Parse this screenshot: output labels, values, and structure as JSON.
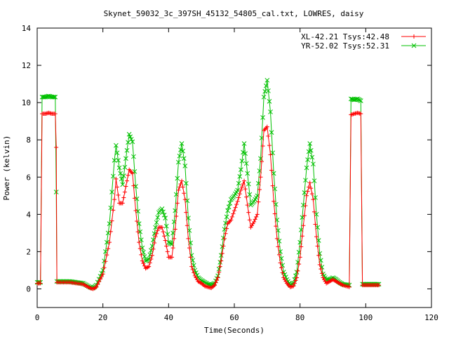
{
  "chart_data": {
    "type": "line",
    "title": "Skynet_59032_3c_397SH_45132_54805_cal.txt, LOWRES, daisy",
    "xlabel": "Time(Seconds)",
    "ylabel": "Power (kelvin)",
    "xlim": [
      0,
      120
    ],
    "ylim": [
      -1,
      14
    ],
    "xticks": [
      0,
      20,
      40,
      60,
      80,
      100,
      120
    ],
    "yticks": [
      0,
      2,
      4,
      6,
      8,
      10,
      12,
      14
    ],
    "grid": false,
    "legend_position": "top-right",
    "series": [
      {
        "name": "XL-42.21 Tsys:42.48",
        "color": "#ff0000",
        "marker": "plus",
        "points": [
          [
            0,
            0.3
          ],
          [
            1,
            0.3
          ],
          [
            1.5,
            9.4
          ],
          [
            2.5,
            9.4
          ],
          [
            3.5,
            9.45
          ],
          [
            4.5,
            9.4
          ],
          [
            5.5,
            9.4
          ],
          [
            5.8,
            7.6
          ],
          [
            6,
            0.35
          ],
          [
            8,
            0.35
          ],
          [
            10,
            0.35
          ],
          [
            12,
            0.3
          ],
          [
            14,
            0.25
          ],
          [
            16,
            0.05
          ],
          [
            17,
            0.0
          ],
          [
            18,
            0.1
          ],
          [
            20,
            0.8
          ],
          [
            22,
            2.5
          ],
          [
            23.5,
            4.8
          ],
          [
            24,
            5.9
          ],
          [
            25,
            4.6
          ],
          [
            26,
            4.6
          ],
          [
            27,
            5.5
          ],
          [
            28,
            6.4
          ],
          [
            29,
            6.2
          ],
          [
            30,
            4.2
          ],
          [
            31,
            2.5
          ],
          [
            32,
            1.5
          ],
          [
            33,
            1.1
          ],
          [
            34,
            1.2
          ],
          [
            35,
            1.8
          ],
          [
            36,
            2.8
          ],
          [
            37,
            3.3
          ],
          [
            38,
            3.3
          ],
          [
            39,
            2.6
          ],
          [
            40,
            1.7
          ],
          [
            41,
            1.7
          ],
          [
            42,
            3.2
          ],
          [
            43,
            5.3
          ],
          [
            44,
            5.8
          ],
          [
            45,
            4.8
          ],
          [
            46,
            2.7
          ],
          [
            47,
            1.2
          ],
          [
            48,
            0.7
          ],
          [
            49,
            0.4
          ],
          [
            50,
            0.3
          ],
          [
            51,
            0.15
          ],
          [
            52,
            0.1
          ],
          [
            53,
            0.05
          ],
          [
            54,
            0.2
          ],
          [
            55,
            0.6
          ],
          [
            56,
            1.5
          ],
          [
            57,
            2.7
          ],
          [
            58,
            3.5
          ],
          [
            59,
            3.7
          ],
          [
            60,
            4.2
          ],
          [
            61,
            4.7
          ],
          [
            62,
            5.3
          ],
          [
            63,
            5.8
          ],
          [
            64,
            4.5
          ],
          [
            65,
            3.3
          ],
          [
            66,
            3.6
          ],
          [
            67,
            4.0
          ],
          [
            68,
            6.0
          ],
          [
            69,
            8.5
          ],
          [
            70,
            8.7
          ],
          [
            71,
            7.2
          ],
          [
            72,
            4.7
          ],
          [
            73,
            2.7
          ],
          [
            74,
            1.4
          ],
          [
            75,
            0.6
          ],
          [
            76,
            0.3
          ],
          [
            77,
            0.1
          ],
          [
            78,
            0.15
          ],
          [
            79,
            0.6
          ],
          [
            80,
            1.7
          ],
          [
            81,
            3.4
          ],
          [
            82,
            5.0
          ],
          [
            83,
            5.7
          ],
          [
            84,
            4.8
          ],
          [
            85,
            2.8
          ],
          [
            86,
            1.3
          ],
          [
            87,
            0.6
          ],
          [
            88,
            0.3
          ],
          [
            89,
            0.4
          ],
          [
            90,
            0.5
          ],
          [
            91,
            0.4
          ],
          [
            92,
            0.3
          ],
          [
            93,
            0.2
          ],
          [
            95,
            0.1
          ],
          [
            95.5,
            9.35
          ],
          [
            96.5,
            9.4
          ],
          [
            97.5,
            9.45
          ],
          [
            98.5,
            9.4
          ],
          [
            99,
            0.2
          ],
          [
            100,
            0.2
          ],
          [
            101,
            0.2
          ],
          [
            102,
            0.2
          ],
          [
            103,
            0.2
          ],
          [
            104,
            0.2
          ]
        ]
      },
      {
        "name": "YR-52.02 Tsys:52.31",
        "color": "#00c000",
        "marker": "cross",
        "points": [
          [
            0,
            0.35
          ],
          [
            1,
            0.35
          ],
          [
            1.5,
            10.3
          ],
          [
            2.5,
            10.3
          ],
          [
            3.5,
            10.35
          ],
          [
            4.5,
            10.3
          ],
          [
            5.5,
            10.3
          ],
          [
            5.8,
            5.2
          ],
          [
            6,
            0.4
          ],
          [
            8,
            0.4
          ],
          [
            10,
            0.4
          ],
          [
            12,
            0.35
          ],
          [
            14,
            0.3
          ],
          [
            16,
            0.1
          ],
          [
            17,
            0.05
          ],
          [
            18,
            0.2
          ],
          [
            20,
            1.0
          ],
          [
            22,
            3.5
          ],
          [
            23.5,
            6.9
          ],
          [
            24,
            7.7
          ],
          [
            25,
            6.5
          ],
          [
            26,
            5.6
          ],
          [
            27,
            7.0
          ],
          [
            28,
            8.3
          ],
          [
            29,
            7.9
          ],
          [
            30,
            5.5
          ],
          [
            31,
            3.5
          ],
          [
            32,
            2.2
          ],
          [
            33,
            1.5
          ],
          [
            34,
            1.6
          ],
          [
            35,
            2.3
          ],
          [
            36,
            3.3
          ],
          [
            37,
            4.1
          ],
          [
            38,
            4.3
          ],
          [
            39,
            3.8
          ],
          [
            40,
            2.5
          ],
          [
            41,
            2.4
          ],
          [
            42,
            4.2
          ],
          [
            43,
            6.8
          ],
          [
            44,
            7.8
          ],
          [
            45,
            6.6
          ],
          [
            46,
            3.8
          ],
          [
            47,
            1.8
          ],
          [
            48,
            1.0
          ],
          [
            49,
            0.6
          ],
          [
            50,
            0.45
          ],
          [
            51,
            0.35
          ],
          [
            52,
            0.25
          ],
          [
            53,
            0.2
          ],
          [
            54,
            0.3
          ],
          [
            55,
            0.7
          ],
          [
            56,
            1.8
          ],
          [
            57,
            3.2
          ],
          [
            58,
            4.2
          ],
          [
            59,
            4.8
          ],
          [
            60,
            5.0
          ],
          [
            61,
            5.3
          ],
          [
            62,
            6.4
          ],
          [
            63,
            7.8
          ],
          [
            64,
            6.2
          ],
          [
            65,
            4.5
          ],
          [
            66,
            4.7
          ],
          [
            67,
            5.0
          ],
          [
            68,
            7.0
          ],
          [
            69,
            10.3
          ],
          [
            70,
            11.2
          ],
          [
            71,
            9.5
          ],
          [
            72,
            6.2
          ],
          [
            73,
            3.7
          ],
          [
            74,
            2.0
          ],
          [
            75,
            0.9
          ],
          [
            76,
            0.5
          ],
          [
            77,
            0.2
          ],
          [
            78,
            0.3
          ],
          [
            79,
            0.9
          ],
          [
            80,
            2.5
          ],
          [
            81,
            4.5
          ],
          [
            82,
            6.5
          ],
          [
            83,
            7.8
          ],
          [
            84,
            6.7
          ],
          [
            85,
            4.0
          ],
          [
            86,
            1.9
          ],
          [
            87,
            0.8
          ],
          [
            88,
            0.5
          ],
          [
            89,
            0.5
          ],
          [
            90,
            0.6
          ],
          [
            91,
            0.5
          ],
          [
            92,
            0.35
          ],
          [
            93,
            0.25
          ],
          [
            95,
            0.2
          ],
          [
            95.5,
            10.2
          ],
          [
            96.5,
            10.15
          ],
          [
            97.5,
            10.2
          ],
          [
            98.5,
            10.1
          ],
          [
            99,
            0.25
          ],
          [
            100,
            0.25
          ],
          [
            101,
            0.25
          ],
          [
            102,
            0.25
          ],
          [
            103,
            0.25
          ],
          [
            104,
            0.25
          ]
        ]
      }
    ]
  }
}
